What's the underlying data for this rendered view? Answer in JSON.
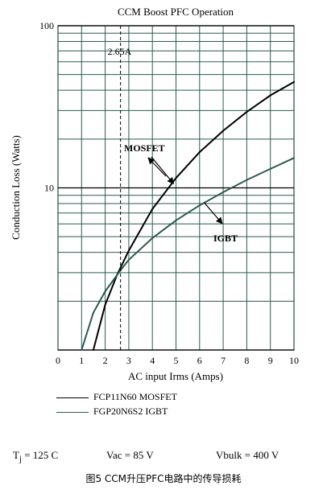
{
  "chart_data": {
    "type": "line",
    "title": "CCM Boost PFC Operation",
    "xlabel": "AC input Irms (Amps)",
    "ylabel": "Conduction Loss (Watts)",
    "x_scale": "linear",
    "y_scale": "log",
    "xlim": [
      0,
      10
    ],
    "ylim": [
      1,
      100
    ],
    "x_ticks": [
      "0",
      "1",
      "2",
      "3",
      "4",
      "5",
      "6",
      "7",
      "8",
      "9",
      "10"
    ],
    "y_ticks": [
      "10",
      "100"
    ],
    "grid": true,
    "series": [
      {
        "name": "FCP11N60 MOSFET",
        "label": "MOSFET",
        "color": "#000000",
        "x": [
          1.5,
          2.0,
          2.5,
          3.0,
          4.0,
          5.0,
          6.0,
          7.0,
          8.0,
          9.0,
          10.0
        ],
        "y": [
          1.0,
          1.9,
          2.9,
          4.1,
          7.4,
          11.5,
          16.6,
          22.5,
          29.4,
          37.2,
          45.0
        ]
      },
      {
        "name": "FGP20N6S2 IGBT",
        "label": "IGBT",
        "color": "#2c5a50",
        "x": [
          1.0,
          1.5,
          2.0,
          2.65,
          3.0,
          4.0,
          5.0,
          6.0,
          7.0,
          8.0,
          9.0,
          10.0
        ],
        "y": [
          1.0,
          1.7,
          2.3,
          3.1,
          3.6,
          4.9,
          6.3,
          7.8,
          9.4,
          11.2,
          13.1,
          15.3
        ]
      }
    ],
    "annotations": [
      {
        "text": "2.65A",
        "x": 2.65
      }
    ]
  },
  "legend": [
    {
      "label": "FCP11N60 MOSFET"
    },
    {
      "label": "FGP20N6S2 IGBT"
    }
  ],
  "conditions": {
    "tj": "= 125 C",
    "vac": "Vac = 85 V",
    "vbulk": "Vbulk = 400 V"
  },
  "caption": "图5 CCM升压PFC电路中的传导损耗"
}
